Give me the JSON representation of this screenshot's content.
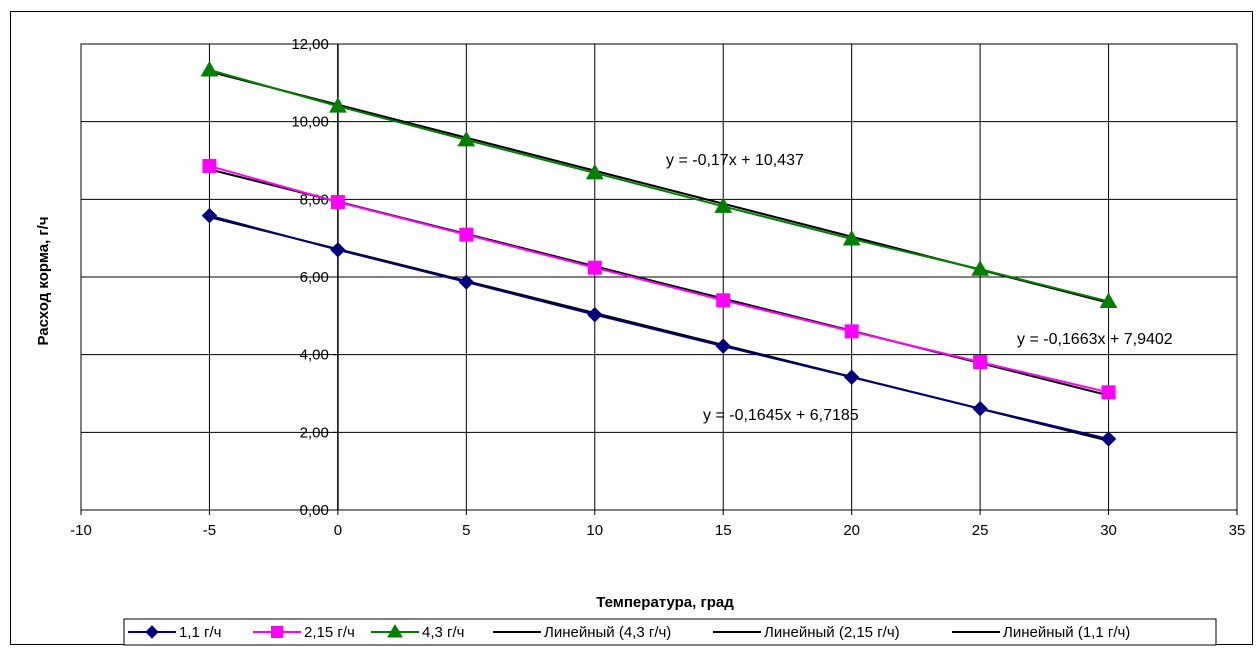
{
  "chart_data": {
    "type": "line",
    "title": "",
    "xlabel": "Температура, град",
    "ylabel": "Расход корма, г/ч",
    "xlim": [
      -10,
      35
    ],
    "ylim": [
      0,
      12
    ],
    "x_ticks": [
      "-10",
      "-5",
      "0",
      "5",
      "10",
      "15",
      "20",
      "25",
      "30",
      "35"
    ],
    "y_ticks": [
      "0,00",
      "2,00",
      "4,00",
      "6,00",
      "8,00",
      "10,00",
      "12,00"
    ],
    "grid": true,
    "x": [
      -5,
      0,
      5,
      10,
      15,
      20,
      25,
      30
    ],
    "series": [
      {
        "name": "1,1 г/ч",
        "color": "#000080",
        "marker": "diamond",
        "values": [
          7.58,
          6.7,
          5.87,
          5.03,
          4.22,
          3.42,
          2.61,
          1.83
        ]
      },
      {
        "name": "2,15 г/ч",
        "color": "#ff00ff",
        "marker": "square",
        "values": [
          8.86,
          7.93,
          7.09,
          6.24,
          5.4,
          4.6,
          3.81,
          3.03
        ]
      },
      {
        "name": "4,3 г/ч",
        "color": "#008000",
        "marker": "triangle",
        "values": [
          11.33,
          10.4,
          9.53,
          8.68,
          7.82,
          6.98,
          6.2,
          5.37
        ]
      }
    ],
    "trendlines": [
      {
        "name": "Линейный (4,3 г/ч)",
        "slope": -0.17,
        "intercept": 10.437,
        "color": "#000000",
        "equation": "y = -0,17x + 10,437"
      },
      {
        "name": "Линейный (2,15 г/ч)",
        "slope": -0.1663,
        "intercept": 7.9402,
        "color": "#000000",
        "equation": "y = -0,1663x + 7,9402"
      },
      {
        "name": "Линейный (1,1 г/ч)",
        "slope": -0.1645,
        "intercept": 6.7185,
        "color": "#000000",
        "equation": "y = -0,1645x + 6,7185"
      }
    ],
    "legend_position": "bottom"
  }
}
